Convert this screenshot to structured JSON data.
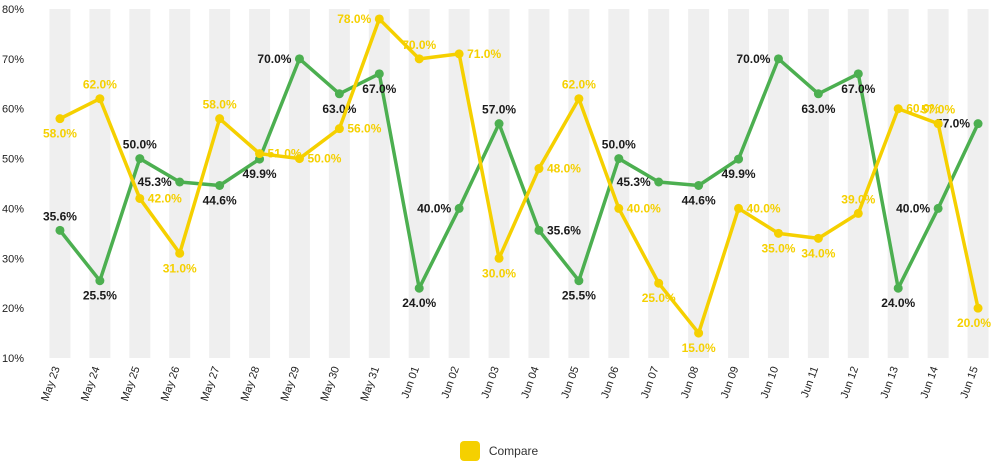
{
  "chart_data": {
    "type": "line",
    "categories": [
      "May 23",
      "May 24",
      "May 25",
      "May 26",
      "May 27",
      "May 28",
      "May 29",
      "May 30",
      "May 31",
      "Jun 01",
      "Jun 02",
      "Jun 03",
      "Jun 04",
      "Jun 05",
      "Jun 06",
      "Jun 07",
      "Jun 08",
      "Jun 09",
      "Jun 10",
      "Jun 11",
      "Jun 12",
      "Jun 13",
      "Jun 14",
      "Jun 15"
    ],
    "ylim": [
      10,
      80
    ],
    "yticks": [
      "10%",
      "20%",
      "30%",
      "40%",
      "50%",
      "60%",
      "70%",
      "80%"
    ],
    "grid": "alternating vertical bands",
    "legend_position": "bottom-center",
    "series": [
      {
        "color": "#4caf50",
        "values": [
          35.6,
          25.5,
          50.0,
          45.3,
          44.6,
          49.9,
          70.0,
          63.0,
          67.0,
          24.0,
          40.0,
          57.0,
          35.6,
          25.5,
          50.0,
          45.3,
          44.6,
          49.9,
          70.0,
          63.0,
          67.0,
          24.0,
          40.0,
          57.0
        ],
        "labels": [
          "35.6%",
          "25.5%",
          "50.0%",
          "45.3%",
          "44.6%",
          "49.9%",
          "70.0%",
          "63.0%",
          "67.0%",
          "24.0%",
          "40.0%",
          "57.0%",
          "35.6%",
          "25.5%",
          "50.0%",
          "45.3%",
          "44.6%",
          "49.9%",
          "70.0%",
          "63.0%",
          "67.0%",
          "24.0%",
          "40.0%",
          "57.0%"
        ],
        "label_positions": [
          "above",
          "below",
          "above",
          "left",
          "below",
          "below",
          "left",
          "below",
          "below",
          "below",
          "left",
          "above",
          "right",
          "below",
          "above",
          "left",
          "below",
          "below",
          "left",
          "below",
          "below",
          "below",
          "left",
          "left"
        ]
      },
      {
        "name": "Compare",
        "color": "#f5d000",
        "values": [
          58.0,
          62.0,
          42.0,
          31.0,
          58.0,
          51.0,
          50.0,
          56.0,
          78.0,
          70.0,
          71.0,
          30.0,
          48.0,
          62.0,
          40.0,
          25.0,
          15.0,
          40.0,
          35.0,
          34.0,
          39.0,
          60.0,
          57.0,
          20.0
        ],
        "labels": [
          "58.0%",
          "62.0%",
          "42.0%",
          "31.0%",
          "58.0%",
          "51.0%",
          "50.0%",
          "56.0%",
          "78.0%",
          "70.0%",
          "71.0%",
          "30.0%",
          "48.0%",
          "62.0%",
          "40.0%",
          "25.0%",
          "15.0%",
          "40.0%",
          "35.0%",
          "34.0%",
          "39.0%",
          "60.0%",
          "57.0%",
          "20.0%"
        ],
        "label_positions": [
          "below",
          "above",
          "right",
          "below",
          "above",
          "right",
          "right",
          "right",
          "left",
          "above",
          "right",
          "below",
          "right",
          "above",
          "right",
          "below",
          "below",
          "right",
          "below",
          "below",
          "above",
          "right",
          "above",
          "below"
        ]
      }
    ]
  },
  "legend": {
    "label": "Compare",
    "color": "#f5d000"
  },
  "band_color": "#efefef"
}
